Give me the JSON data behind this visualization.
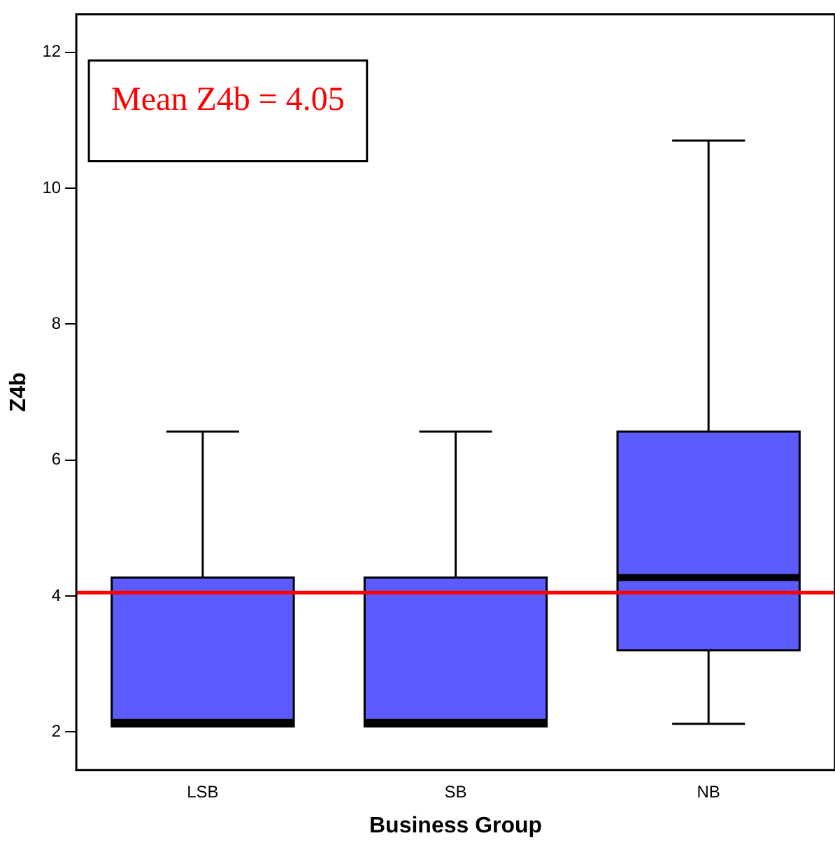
{
  "chart_data": {
    "type": "box",
    "xlabel": "Business Group",
    "ylabel": "Z4b",
    "categories": [
      "LSB",
      "SB",
      "NB"
    ],
    "boxes": [
      {
        "low": 2.08,
        "q1": 2.08,
        "median": 2.14,
        "q3": 4.27,
        "high": 6.42
      },
      {
        "low": 2.08,
        "q1": 2.08,
        "median": 2.14,
        "q3": 4.27,
        "high": 6.42
      },
      {
        "low": 2.12,
        "q1": 3.2,
        "median": 4.27,
        "q3": 6.42,
        "high": 10.7
      }
    ],
    "color": "#5b5bff",
    "ylim": [
      1.44,
      12.56
    ],
    "yticks": [
      2,
      4,
      6,
      8,
      10,
      12
    ],
    "grid": false,
    "legend": false,
    "ref_lines": [
      {
        "axis": "y",
        "value": 4.05,
        "label": "Mean Z4b = 4.05",
        "color": "#ff0000"
      }
    ]
  }
}
